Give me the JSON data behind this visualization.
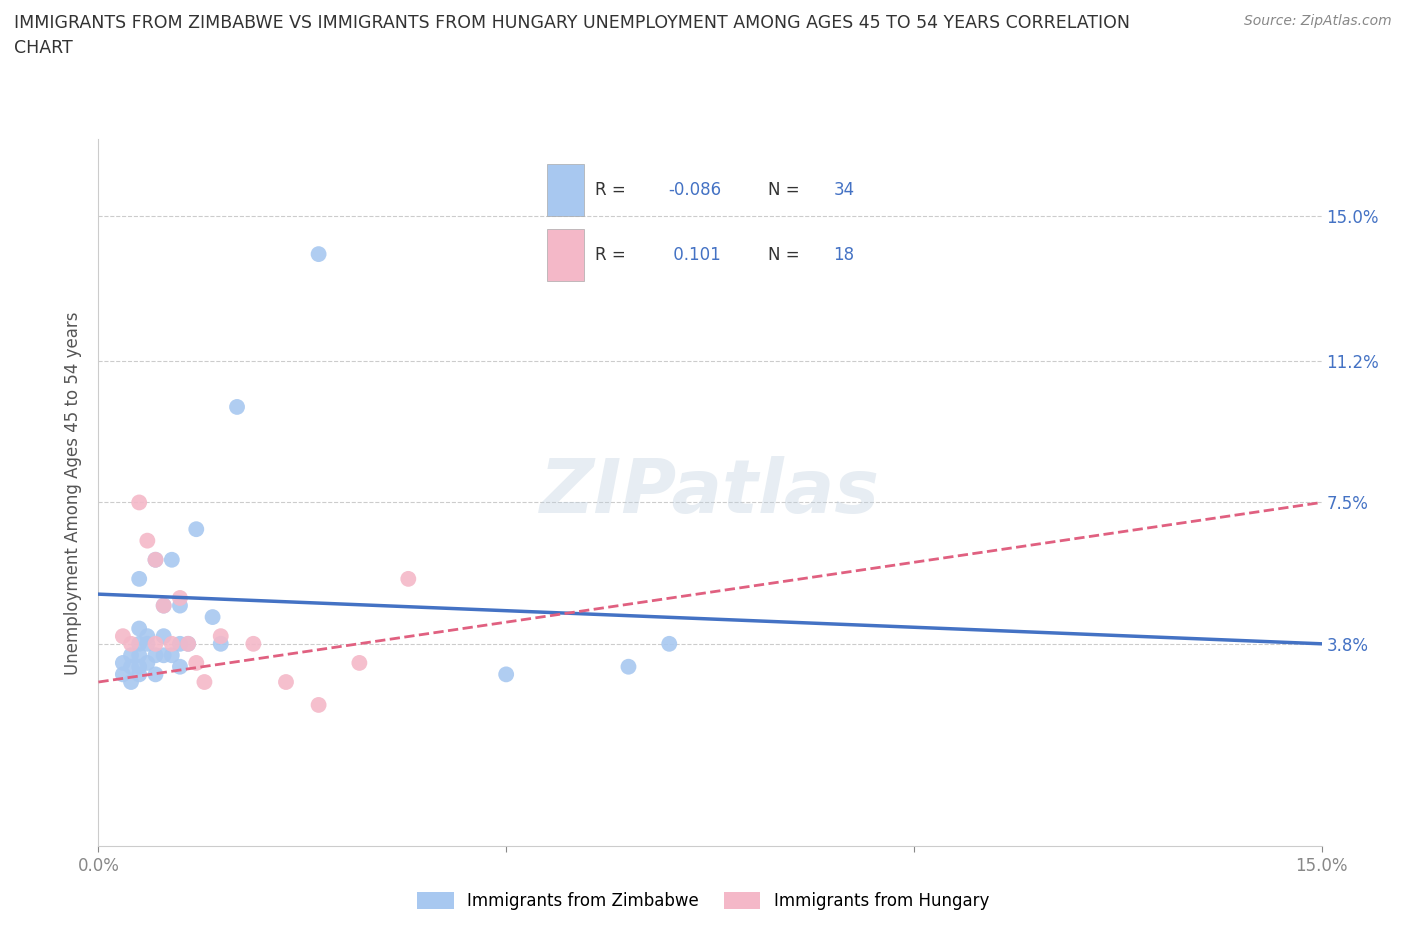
{
  "title_line1": "IMMIGRANTS FROM ZIMBABWE VS IMMIGRANTS FROM HUNGARY UNEMPLOYMENT AMONG AGES 45 TO 54 YEARS CORRELATION",
  "title_line2": "CHART",
  "source": "Source: ZipAtlas.com",
  "ylabel": "Unemployment Among Ages 45 to 54 years",
  "xlim": [
    0.0,
    0.15
  ],
  "ylim": [
    -0.015,
    0.17
  ],
  "ytick_positions": [
    0.038,
    0.075,
    0.112,
    0.15
  ],
  "ytick_labels": [
    "3.8%",
    "7.5%",
    "11.2%",
    "15.0%"
  ],
  "watermark": "ZIPatlas",
  "color_zimbabwe": "#A8C8F0",
  "color_hungary": "#F4B8C8",
  "color_zimbabwe_line": "#4472C4",
  "color_hungary_line": "#E06080",
  "background_plot": "#FFFFFF",
  "grid_color": "#CCCCCC",
  "zimbabwe_x": [
    0.003,
    0.003,
    0.004,
    0.004,
    0.004,
    0.005,
    0.005,
    0.005,
    0.005,
    0.005,
    0.005,
    0.006,
    0.006,
    0.006,
    0.007,
    0.007,
    0.007,
    0.008,
    0.008,
    0.008,
    0.009,
    0.009,
    0.01,
    0.01,
    0.01,
    0.011,
    0.012,
    0.014,
    0.015,
    0.017,
    0.027,
    0.05,
    0.065,
    0.07
  ],
  "zimbabwe_y": [
    0.033,
    0.03,
    0.035,
    0.032,
    0.028,
    0.055,
    0.042,
    0.038,
    0.035,
    0.032,
    0.03,
    0.04,
    0.038,
    0.033,
    0.06,
    0.035,
    0.03,
    0.048,
    0.04,
    0.035,
    0.06,
    0.035,
    0.048,
    0.038,
    0.032,
    0.038,
    0.068,
    0.045,
    0.038,
    0.1,
    0.14,
    0.03,
    0.032,
    0.038
  ],
  "hungary_x": [
    0.003,
    0.004,
    0.005,
    0.006,
    0.007,
    0.007,
    0.008,
    0.009,
    0.01,
    0.011,
    0.012,
    0.013,
    0.015,
    0.019,
    0.023,
    0.027,
    0.032,
    0.038
  ],
  "hungary_y": [
    0.04,
    0.038,
    0.075,
    0.065,
    0.06,
    0.038,
    0.048,
    0.038,
    0.05,
    0.038,
    0.033,
    0.028,
    0.04,
    0.038,
    0.028,
    0.022,
    0.033,
    0.055
  ],
  "zim_line_x": [
    0.0,
    0.15
  ],
  "zim_line_y": [
    0.051,
    0.038
  ],
  "hun_line_x": [
    0.0,
    0.15
  ],
  "hun_line_y": [
    0.028,
    0.075
  ]
}
